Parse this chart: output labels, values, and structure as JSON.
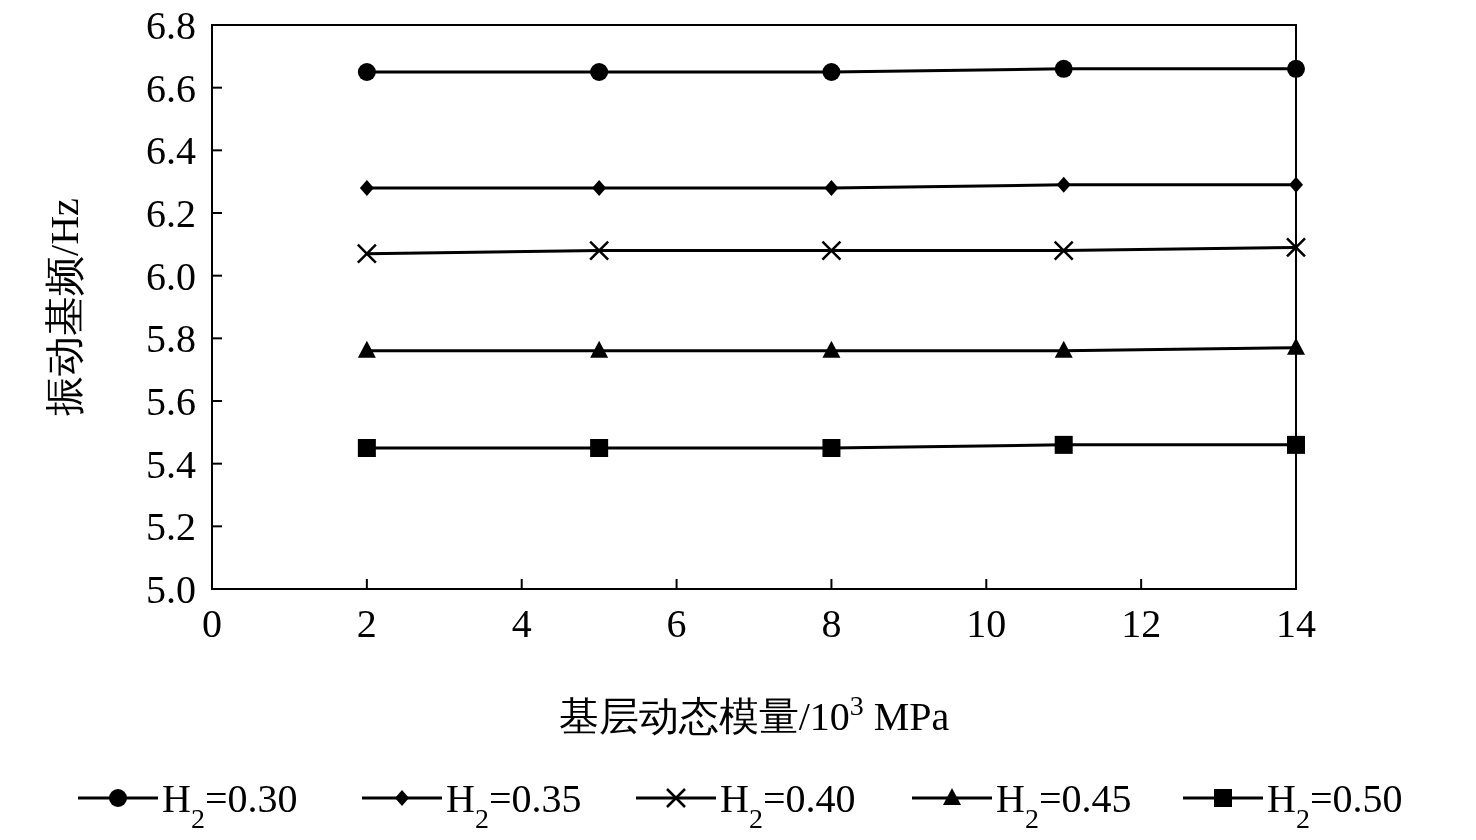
{
  "chart_data": {
    "type": "line",
    "xlabel": "基层动态模量/10$^{3}$ MPa",
    "ylabel": "振动基频/Hz",
    "x": [
      2,
      5,
      8,
      11,
      14
    ],
    "xlim": [
      0,
      14
    ],
    "xticks": [
      0,
      2,
      4,
      6,
      8,
      10,
      12,
      14
    ],
    "ylim": [
      5.0,
      6.8
    ],
    "yticks": [
      {
        "value": 5.0,
        "label": "5.0"
      },
      {
        "value": 5.2,
        "label": "5.2"
      },
      {
        "value": 5.4,
        "label": "5.4"
      },
      {
        "value": 5.6,
        "label": "5.6"
      },
      {
        "value": 5.8,
        "label": "5.8"
      },
      {
        "value": 6.0,
        "label": "6.0"
      },
      {
        "value": 6.2,
        "label": "6.2"
      },
      {
        "value": 6.4,
        "label": "6.4"
      },
      {
        "value": 6.6,
        "label": "6.6"
      },
      {
        "value": 6.8,
        "label": "6.8"
      }
    ],
    "grid": false,
    "legend": "bottom",
    "line_style": "solid",
    "series": [
      {
        "name": "H$_{2}$=0.30",
        "color": "#000000",
        "marker": "circle",
        "values": [
          6.65,
          6.65,
          6.65,
          6.66,
          6.66
        ]
      },
      {
        "name": "H$_{2}$=0.35",
        "color": "#000000",
        "marker": "diamond",
        "values": [
          6.28,
          6.28,
          6.28,
          6.29,
          6.29
        ]
      },
      {
        "name": "H$_{2}$=0.40",
        "color": "#000000",
        "marker": "cross",
        "values": [
          6.07,
          6.08,
          6.08,
          6.08,
          6.09
        ]
      },
      {
        "name": "H$_{2}$=0.45",
        "color": "#000000",
        "marker": "triangle",
        "values": [
          5.76,
          5.76,
          5.76,
          5.76,
          5.77
        ]
      },
      {
        "name": "H$_{2}$=0.50",
        "color": "#000000",
        "marker": "square",
        "values": [
          5.45,
          5.45,
          5.45,
          5.46,
          5.46
        ]
      }
    ]
  }
}
